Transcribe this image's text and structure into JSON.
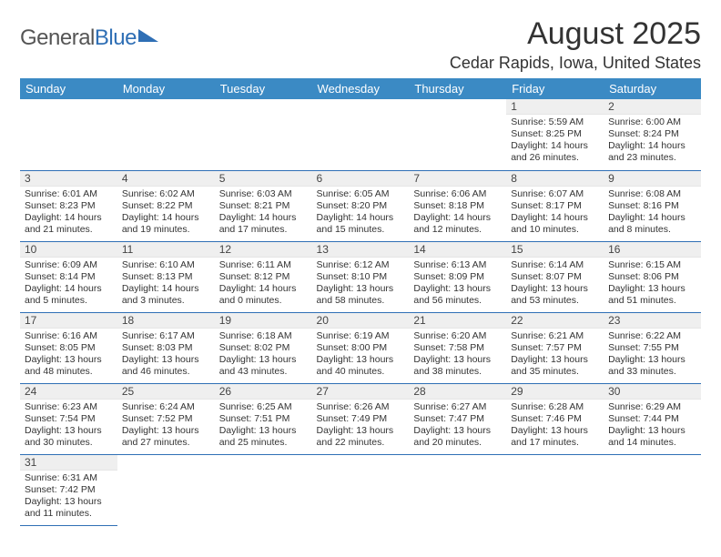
{
  "logo": {
    "word1": "General",
    "word2": "Blue"
  },
  "title": "August 2025",
  "location": "Cedar Rapids, Iowa, United States",
  "colors": {
    "header_bg": "#3b8ac4",
    "header_text": "#ffffff",
    "rule": "#2f6fb5",
    "daynum_bg": "#efefef",
    "body_text": "#333333",
    "logo_blue": "#2f6fb5"
  },
  "layout": {
    "columns": 7,
    "rows": 6,
    "first_day_column_index": 5
  },
  "weekdays": [
    "Sunday",
    "Monday",
    "Tuesday",
    "Wednesday",
    "Thursday",
    "Friday",
    "Saturday"
  ],
  "days": [
    {
      "n": 1,
      "sunrise": "5:59 AM",
      "sunset": "8:25 PM",
      "daylight": "14 hours and 26 minutes."
    },
    {
      "n": 2,
      "sunrise": "6:00 AM",
      "sunset": "8:24 PM",
      "daylight": "14 hours and 23 minutes."
    },
    {
      "n": 3,
      "sunrise": "6:01 AM",
      "sunset": "8:23 PM",
      "daylight": "14 hours and 21 minutes."
    },
    {
      "n": 4,
      "sunrise": "6:02 AM",
      "sunset": "8:22 PM",
      "daylight": "14 hours and 19 minutes."
    },
    {
      "n": 5,
      "sunrise": "6:03 AM",
      "sunset": "8:21 PM",
      "daylight": "14 hours and 17 minutes."
    },
    {
      "n": 6,
      "sunrise": "6:05 AM",
      "sunset": "8:20 PM",
      "daylight": "14 hours and 15 minutes."
    },
    {
      "n": 7,
      "sunrise": "6:06 AM",
      "sunset": "8:18 PM",
      "daylight": "14 hours and 12 minutes."
    },
    {
      "n": 8,
      "sunrise": "6:07 AM",
      "sunset": "8:17 PM",
      "daylight": "14 hours and 10 minutes."
    },
    {
      "n": 9,
      "sunrise": "6:08 AM",
      "sunset": "8:16 PM",
      "daylight": "14 hours and 8 minutes."
    },
    {
      "n": 10,
      "sunrise": "6:09 AM",
      "sunset": "8:14 PM",
      "daylight": "14 hours and 5 minutes."
    },
    {
      "n": 11,
      "sunrise": "6:10 AM",
      "sunset": "8:13 PM",
      "daylight": "14 hours and 3 minutes."
    },
    {
      "n": 12,
      "sunrise": "6:11 AM",
      "sunset": "8:12 PM",
      "daylight": "14 hours and 0 minutes."
    },
    {
      "n": 13,
      "sunrise": "6:12 AM",
      "sunset": "8:10 PM",
      "daylight": "13 hours and 58 minutes."
    },
    {
      "n": 14,
      "sunrise": "6:13 AM",
      "sunset": "8:09 PM",
      "daylight": "13 hours and 56 minutes."
    },
    {
      "n": 15,
      "sunrise": "6:14 AM",
      "sunset": "8:07 PM",
      "daylight": "13 hours and 53 minutes."
    },
    {
      "n": 16,
      "sunrise": "6:15 AM",
      "sunset": "8:06 PM",
      "daylight": "13 hours and 51 minutes."
    },
    {
      "n": 17,
      "sunrise": "6:16 AM",
      "sunset": "8:05 PM",
      "daylight": "13 hours and 48 minutes."
    },
    {
      "n": 18,
      "sunrise": "6:17 AM",
      "sunset": "8:03 PM",
      "daylight": "13 hours and 46 minutes."
    },
    {
      "n": 19,
      "sunrise": "6:18 AM",
      "sunset": "8:02 PM",
      "daylight": "13 hours and 43 minutes."
    },
    {
      "n": 20,
      "sunrise": "6:19 AM",
      "sunset": "8:00 PM",
      "daylight": "13 hours and 40 minutes."
    },
    {
      "n": 21,
      "sunrise": "6:20 AM",
      "sunset": "7:58 PM",
      "daylight": "13 hours and 38 minutes."
    },
    {
      "n": 22,
      "sunrise": "6:21 AM",
      "sunset": "7:57 PM",
      "daylight": "13 hours and 35 minutes."
    },
    {
      "n": 23,
      "sunrise": "6:22 AM",
      "sunset": "7:55 PM",
      "daylight": "13 hours and 33 minutes."
    },
    {
      "n": 24,
      "sunrise": "6:23 AM",
      "sunset": "7:54 PM",
      "daylight": "13 hours and 30 minutes."
    },
    {
      "n": 25,
      "sunrise": "6:24 AM",
      "sunset": "7:52 PM",
      "daylight": "13 hours and 27 minutes."
    },
    {
      "n": 26,
      "sunrise": "6:25 AM",
      "sunset": "7:51 PM",
      "daylight": "13 hours and 25 minutes."
    },
    {
      "n": 27,
      "sunrise": "6:26 AM",
      "sunset": "7:49 PM",
      "daylight": "13 hours and 22 minutes."
    },
    {
      "n": 28,
      "sunrise": "6:27 AM",
      "sunset": "7:47 PM",
      "daylight": "13 hours and 20 minutes."
    },
    {
      "n": 29,
      "sunrise": "6:28 AM",
      "sunset": "7:46 PM",
      "daylight": "13 hours and 17 minutes."
    },
    {
      "n": 30,
      "sunrise": "6:29 AM",
      "sunset": "7:44 PM",
      "daylight": "13 hours and 14 minutes."
    },
    {
      "n": 31,
      "sunrise": "6:31 AM",
      "sunset": "7:42 PM",
      "daylight": "13 hours and 11 minutes."
    }
  ],
  "labels": {
    "sunrise": "Sunrise:",
    "sunset": "Sunset:",
    "daylight": "Daylight:"
  }
}
